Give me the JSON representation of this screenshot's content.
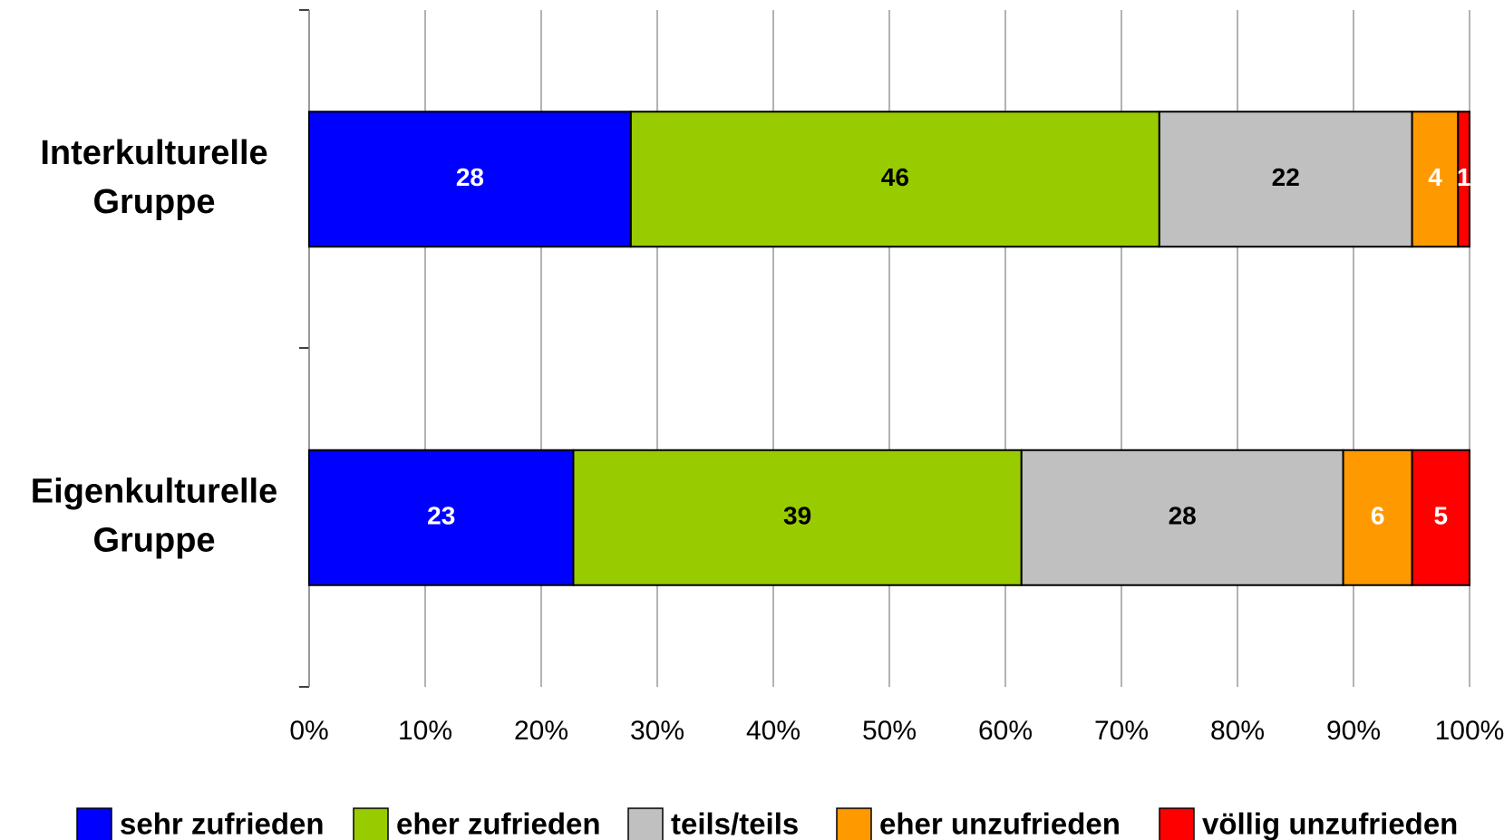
{
  "chart_data": {
    "type": "bar",
    "orientation": "horizontal",
    "stack": "percent",
    "categories": [
      "Interkulturelle Gruppe",
      "Eigenkulturelle Gruppe"
    ],
    "series": [
      {
        "name": "sehr zufrieden",
        "color": "#0000ff",
        "label_color": "#ffffff",
        "values": [
          28,
          23
        ]
      },
      {
        "name": "eher zufrieden",
        "color": "#99cc00",
        "label_color": "#000000",
        "values": [
          46,
          39
        ]
      },
      {
        "name": "teils/teils",
        "color": "#c0c0c0",
        "label_color": "#000000",
        "values": [
          22,
          28
        ]
      },
      {
        "name": "eher unzufrieden",
        "color": "#ff9900",
        "label_color": "#ffffff",
        "values": [
          4,
          6
        ]
      },
      {
        "name": "völlig unzufrieden",
        "color": "#ff0000",
        "label_color": "#ffffff",
        "values": [
          1,
          5
        ]
      }
    ],
    "xlim": [
      0,
      100
    ],
    "xticks": [
      {
        "value": 0,
        "label": "0%"
      },
      {
        "value": 10,
        "label": "10%"
      },
      {
        "value": 20,
        "label": "20%"
      },
      {
        "value": 30,
        "label": "30%"
      },
      {
        "value": 40,
        "label": "40%"
      },
      {
        "value": 50,
        "label": "50%"
      },
      {
        "value": 60,
        "label": "60%"
      },
      {
        "value": 70,
        "label": "70%"
      },
      {
        "value": 80,
        "label": "80%"
      },
      {
        "value": 90,
        "label": "90%"
      },
      {
        "value": 100,
        "label": "100%"
      }
    ],
    "grid": true,
    "legend": "bottom"
  }
}
